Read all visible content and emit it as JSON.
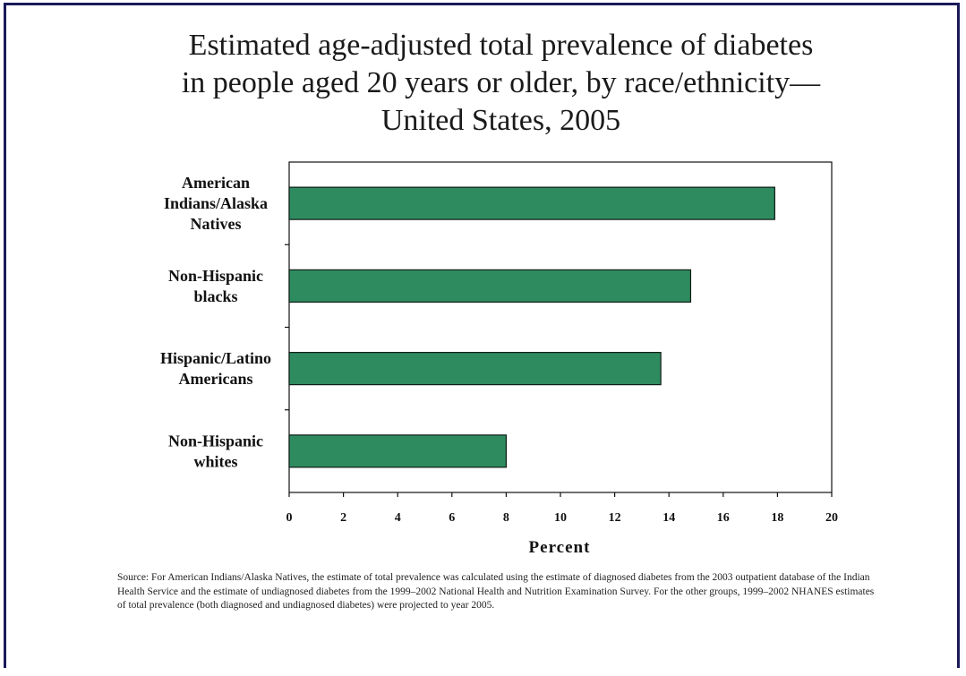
{
  "chart_data": {
    "type": "bar",
    "orientation": "horizontal",
    "title_lines": [
      "Estimated age-adjusted total prevalence of diabetes",
      "in people aged 20 years or older, by race/ethnicity—",
      "United States, 2005"
    ],
    "categories": [
      [
        "American",
        "Indians/Alaska",
        "Natives"
      ],
      [
        "Non-Hispanic",
        "blacks"
      ],
      [
        "Hispanic/Latino",
        "Americans"
      ],
      [
        "Non-Hispanic",
        "whites"
      ]
    ],
    "values": [
      17.9,
      14.8,
      13.7,
      8.0
    ],
    "xlabel": "Percent",
    "ylabel": "",
    "xlim": [
      0,
      20
    ],
    "xticks": [
      0,
      2,
      4,
      6,
      8,
      10,
      12,
      14,
      16,
      18,
      20
    ],
    "grid": false,
    "bar_color": "#2e8b60",
    "bar_border": "#0d1d14"
  },
  "source_note": "Source: For American Indians/Alaska Natives, the estimate of total prevalence was calculated using the estimate of diagnosed diabetes from the 2003 outpatient database of the Indian Health Service and the estimate of undiagnosed diabetes from the 1999–2002 National Health and Nutrition Examination Survey. For the other groups, 1999–2002 NHANES estimates of total prevalence (both diagnosed and undiagnosed diabetes) were projected to year 2005."
}
